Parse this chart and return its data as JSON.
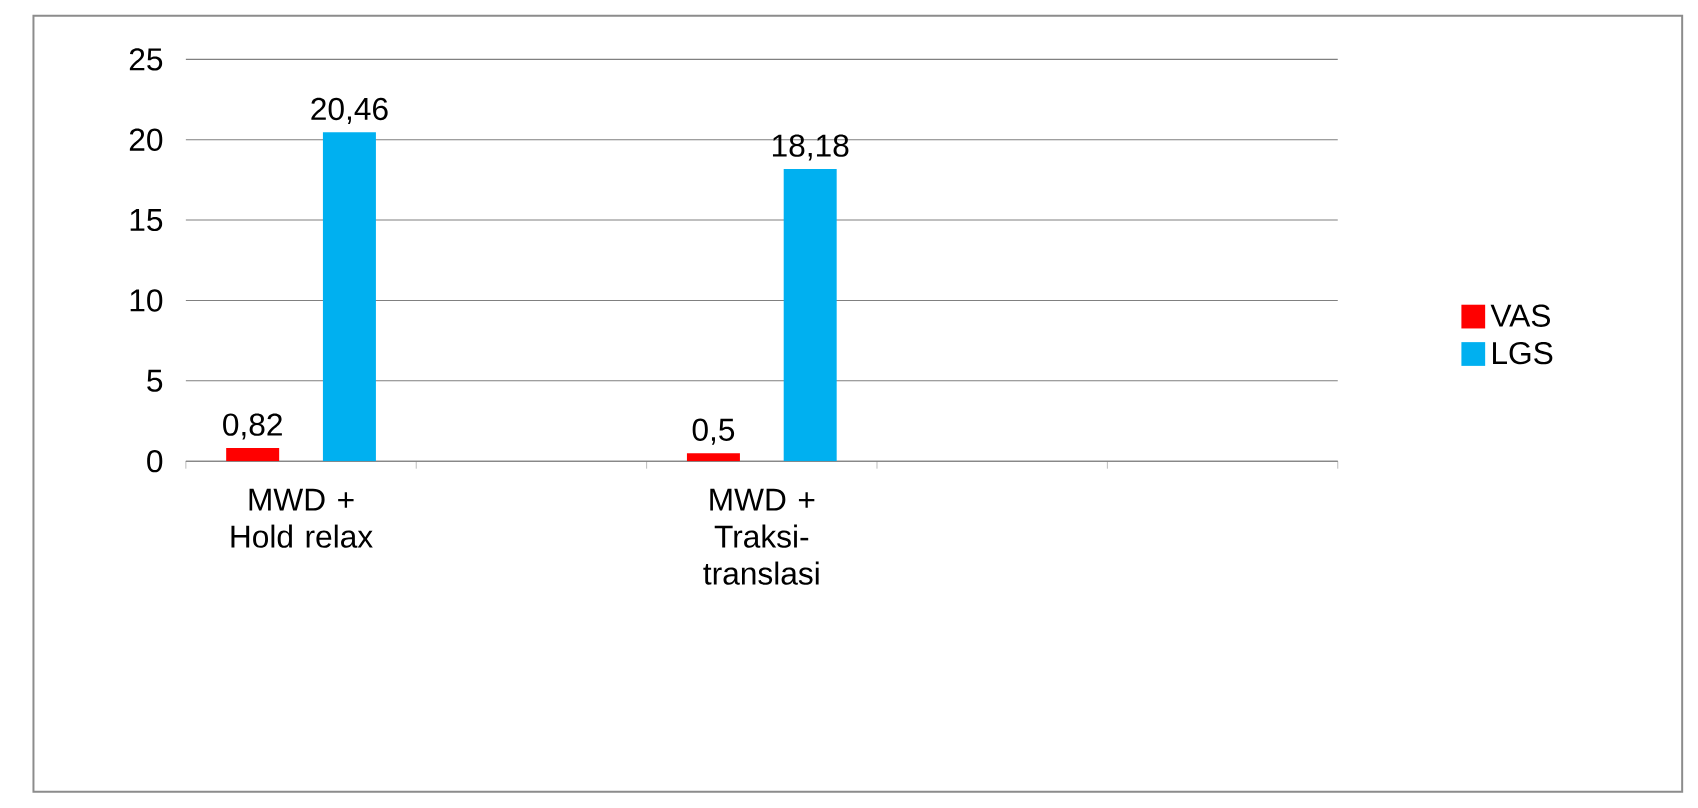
{
  "chart_data": {
    "type": "bar",
    "categories": [
      "MWD + Hold relax",
      null,
      "MWD + Traksi-translasi",
      null,
      null
    ],
    "series": [
      {
        "name": "VAS",
        "color": "#ff0000",
        "values": [
          0.82,
          null,
          0.5,
          null,
          null
        ],
        "value_labels": [
          "0,82",
          null,
          "0,5",
          null,
          null
        ]
      },
      {
        "name": "LGS",
        "color": "#00b0f0",
        "values": [
          20.46,
          null,
          18.18,
          null,
          null
        ],
        "value_labels": [
          "20,46",
          null,
          "18,18",
          null,
          null
        ]
      }
    ],
    "ylim": [
      0,
      25
    ],
    "yticks": [
      0,
      5,
      10,
      15,
      20,
      25
    ],
    "grid": "y",
    "legend": "right"
  }
}
